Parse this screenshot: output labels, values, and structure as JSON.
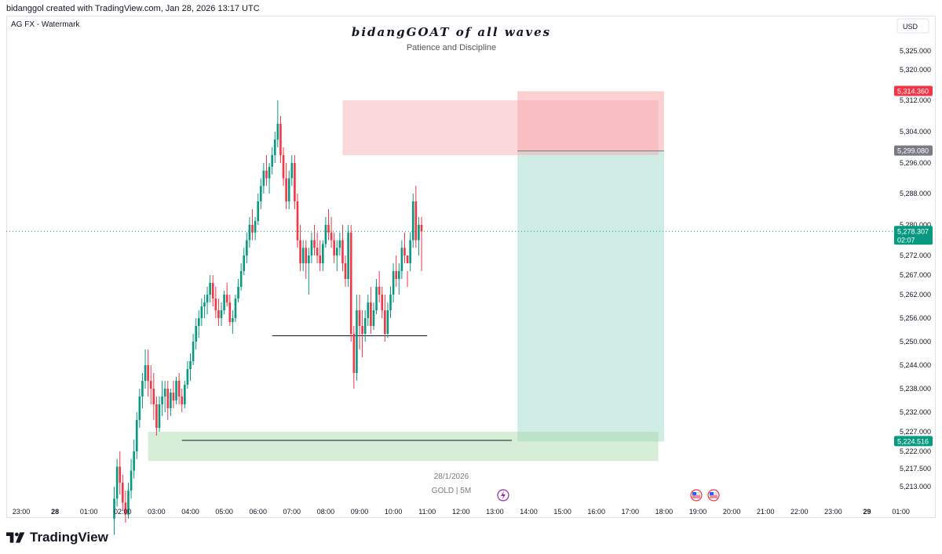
{
  "header": {
    "attribution": "bidanggol created with TradingView.com, Jan 28, 2026 13:17 UTC",
    "symbol_watermark": "AG FX - Watermark",
    "currency_button": "USD"
  },
  "footer": {
    "brand": "TradingView"
  },
  "chart_data": {
    "type": "candlestick",
    "title": "bidangGOAT of all waves",
    "subtitle": "Patience and Discipline",
    "symbol_label": "GOLD | 5M",
    "date_label": "28/1/2026",
    "currency": "USD",
    "x_ticks": [
      "23:00",
      "28",
      "01:00",
      "02:00",
      "03:00",
      "04:00",
      "05:00",
      "06:00",
      "07:00",
      "08:00",
      "09:00",
      "10:00",
      "11:00",
      "12:00",
      "13:00",
      "14:00",
      "15:00",
      "16:00",
      "17:00",
      "18:00",
      "19:00",
      "20:00",
      "21:00",
      "22:00",
      "23:00",
      "29",
      "01:00"
    ],
    "y_ticks": [
      "5,325.000",
      "5,320.000",
      "5,312.000",
      "5,304.000",
      "5,296.000",
      "5,288.000",
      "5,280.000",
      "5,272.000",
      "5,267.000",
      "5,262.000",
      "5,256.000",
      "5,250.000",
      "5,244.000",
      "5,238.000",
      "5,232.000",
      "5,227.000",
      "5,222.000",
      "5,217.500",
      "5,213.000"
    ],
    "price_labels": [
      {
        "value": "5,314.360",
        "color": "#f23645"
      },
      {
        "value": "5,299.080",
        "color": "#787b86"
      },
      {
        "value": "5,278.307",
        "sub": "02:07",
        "color": "#089981"
      },
      {
        "value": "5,224.516",
        "color": "#089981"
      }
    ],
    "colors": {
      "up": "#089981",
      "down": "#f23645",
      "supply_zone": "#f7a9ae",
      "demand_zone": "#a5d6a7",
      "target_zone": "#9fdcca",
      "stop_zone": "#f7a9ae"
    },
    "ohlc_series": [
      [
        5205.0,
        5213.0,
        5201.0,
        5210.0
      ],
      [
        5210.0,
        5220.0,
        5208.0,
        5218.0
      ],
      [
        5218.0,
        5222.0,
        5211.0,
        5214.0
      ],
      [
        5214.0,
        5216.0,
        5207.0,
        5209.0
      ],
      [
        5209.0,
        5212.0,
        5204.0,
        5206.0
      ],
      [
        5206.0,
        5214.0,
        5205.0,
        5212.0
      ],
      [
        5212.0,
        5220.0,
        5210.0,
        5217.0
      ],
      [
        5217.0,
        5225.0,
        5215.0,
        5222.0
      ],
      [
        5222.0,
        5232.0,
        5220.0,
        5230.0
      ],
      [
        5230.0,
        5238.0,
        5228.0,
        5236.0
      ],
      [
        5236.0,
        5242.0,
        5233.0,
        5240.0
      ],
      [
        5240.0,
        5248.0,
        5238.0,
        5244.0
      ],
      [
        5244.0,
        5248.0,
        5236.0,
        5240.0
      ],
      [
        5240.0,
        5244.0,
        5234.0,
        5238.0
      ],
      [
        5238.0,
        5242.0,
        5230.0,
        5234.0
      ],
      [
        5234.0,
        5236.0,
        5226.0,
        5228.0
      ],
      [
        5228.0,
        5236.0,
        5227.0,
        5234.0
      ],
      [
        5234.0,
        5240.0,
        5231.0,
        5236.0
      ],
      [
        5236.0,
        5240.0,
        5232.0,
        5238.0
      ],
      [
        5238.0,
        5240.0,
        5230.0,
        5233.0
      ],
      [
        5233.0,
        5238.0,
        5231.0,
        5237.0
      ],
      [
        5237.0,
        5240.0,
        5233.0,
        5235.0
      ],
      [
        5235.0,
        5241.0,
        5234.0,
        5240.0
      ],
      [
        5240.0,
        5242.0,
        5234.0,
        5236.0
      ],
      [
        5236.0,
        5238.0,
        5232.0,
        5234.0
      ],
      [
        5234.0,
        5240.0,
        5233.0,
        5239.0
      ],
      [
        5239.0,
        5245.0,
        5238.0,
        5243.0
      ],
      [
        5243.0,
        5247.0,
        5240.0,
        5245.0
      ],
      [
        5245.0,
        5252.0,
        5244.0,
        5250.0
      ],
      [
        5250.0,
        5256.0,
        5248.0,
        5254.0
      ],
      [
        5254.0,
        5258.0,
        5251.0,
        5256.0
      ],
      [
        5256.0,
        5261.0,
        5254.0,
        5259.0
      ],
      [
        5259.0,
        5262.0,
        5256.0,
        5260.0
      ],
      [
        5260.0,
        5264.0,
        5257.0,
        5262.0
      ],
      [
        5262.0,
        5267.0,
        5260.0,
        5265.0
      ],
      [
        5265.0,
        5267.0,
        5259.0,
        5261.0
      ],
      [
        5261.0,
        5264.0,
        5256.0,
        5258.0
      ],
      [
        5258.0,
        5261.0,
        5254.0,
        5256.0
      ],
      [
        5256.0,
        5260.0,
        5254.0,
        5258.0
      ],
      [
        5258.0,
        5263.0,
        5257.0,
        5262.0
      ],
      [
        5262.0,
        5265.0,
        5259.0,
        5260.0
      ],
      [
        5260.0,
        5262.0,
        5254.0,
        5255.0
      ],
      [
        5255.0,
        5258.0,
        5252.0,
        5256.0
      ],
      [
        5256.0,
        5262.0,
        5255.0,
        5261.0
      ],
      [
        5261.0,
        5266.0,
        5260.0,
        5264.0
      ],
      [
        5264.0,
        5270.0,
        5263.0,
        5268.0
      ],
      [
        5268.0,
        5274.0,
        5267.0,
        5272.0
      ],
      [
        5272.0,
        5278.0,
        5270.0,
        5276.0
      ],
      [
        5276.0,
        5282.0,
        5274.0,
        5280.0
      ],
      [
        5280.0,
        5284.0,
        5276.0,
        5278.0
      ],
      [
        5278.0,
        5282.0,
        5276.0,
        5281.0
      ],
      [
        5281.0,
        5288.0,
        5280.0,
        5286.0
      ],
      [
        5286.0,
        5292.0,
        5284.0,
        5290.0
      ],
      [
        5290.0,
        5296.0,
        5288.0,
        5294.0
      ],
      [
        5294.0,
        5298.0,
        5290.0,
        5292.0
      ],
      [
        5292.0,
        5296.0,
        5288.0,
        5295.0
      ],
      [
        5295.0,
        5300.0,
        5293.0,
        5298.0
      ],
      [
        5298.0,
        5304.0,
        5296.0,
        5302.0
      ],
      [
        5302.0,
        5312.0,
        5300.0,
        5306.0
      ],
      [
        5306.0,
        5308.0,
        5296.0,
        5298.0
      ],
      [
        5298.0,
        5300.0,
        5290.0,
        5292.0
      ],
      [
        5292.0,
        5296.0,
        5284.0,
        5286.0
      ],
      [
        5286.0,
        5294.0,
        5284.0,
        5292.0
      ],
      [
        5292.0,
        5298.0,
        5290.0,
        5296.0
      ],
      [
        5296.0,
        5298.0,
        5284.0,
        5286.0
      ],
      [
        5286.0,
        5288.0,
        5274.0,
        5276.0
      ],
      [
        5276.0,
        5280.0,
        5268.0,
        5270.0
      ],
      [
        5270.0,
        5276.0,
        5268.0,
        5274.0
      ],
      [
        5274.0,
        5276.0,
        5266.0,
        5270.0
      ],
      [
        5270.0,
        5274.0,
        5262.0,
        5272.0
      ],
      [
        5272.0,
        5278.0,
        5270.0,
        5276.0
      ],
      [
        5276.0,
        5280.0,
        5272.0,
        5274.0
      ],
      [
        5274.0,
        5278.0,
        5270.0,
        5272.0
      ],
      [
        5272.0,
        5276.0,
        5268.0,
        5270.0
      ],
      [
        5270.0,
        5276.0,
        5268.0,
        5275.0
      ],
      [
        5275.0,
        5282.0,
        5274.0,
        5280.0
      ],
      [
        5280.0,
        5284.0,
        5276.0,
        5278.0
      ],
      [
        5278.0,
        5282.0,
        5274.0,
        5276.0
      ],
      [
        5276.0,
        5278.0,
        5270.0,
        5272.0
      ],
      [
        5272.0,
        5276.0,
        5268.0,
        5274.0
      ],
      [
        5274.0,
        5278.0,
        5272.0,
        5276.0
      ],
      [
        5276.0,
        5280.0,
        5268.0,
        5270.0
      ],
      [
        5270.0,
        5272.0,
        5264.0,
        5266.0
      ],
      [
        5266.0,
        5280.0,
        5264.0,
        5278.0
      ],
      [
        5278.0,
        5280.0,
        5250.0,
        5252.0
      ],
      [
        5252.0,
        5254.0,
        5238.0,
        5242.0
      ],
      [
        5242.0,
        5262.0,
        5240.0,
        5258.0
      ],
      [
        5258.0,
        5262.0,
        5248.0,
        5254.0
      ],
      [
        5254.0,
        5258.0,
        5246.0,
        5252.0
      ],
      [
        5252.0,
        5258.0,
        5250.0,
        5256.0
      ],
      [
        5256.0,
        5262.0,
        5254.0,
        5260.0
      ],
      [
        5260.0,
        5264.0,
        5252.0,
        5254.0
      ],
      [
        5254.0,
        5260.0,
        5253.0,
        5258.0
      ],
      [
        5258.0,
        5266.0,
        5257.0,
        5264.0
      ],
      [
        5264.0,
        5268.0,
        5260.0,
        5262.0
      ],
      [
        5262.0,
        5264.0,
        5256.0,
        5258.0
      ],
      [
        5258.0,
        5262.0,
        5250.0,
        5252.0
      ],
      [
        5252.0,
        5260.0,
        5251.0,
        5258.0
      ],
      [
        5258.0,
        5264.0,
        5256.0,
        5262.0
      ],
      [
        5262.0,
        5270.0,
        5260.0,
        5268.0
      ],
      [
        5268.0,
        5272.0,
        5264.0,
        5266.0
      ],
      [
        5266.0,
        5270.0,
        5262.0,
        5268.0
      ],
      [
        5268.0,
        5276.0,
        5266.0,
        5274.0
      ],
      [
        5274.0,
        5278.0,
        5270.0,
        5272.0
      ],
      [
        5272.0,
        5268.0,
        5264.0,
        5270.0
      ],
      [
        5270.0,
        5278.0,
        5268.0,
        5276.0
      ],
      [
        5276.0,
        5288.0,
        5274.0,
        5286.0
      ],
      [
        5286.0,
        5290.0,
        5274.0,
        5276.0
      ],
      [
        5276.0,
        5282.0,
        5272.0,
        5280.0
      ],
      [
        5280.0,
        5282.0,
        5268.0,
        5278.3
      ]
    ],
    "zones": [
      {
        "name": "supply",
        "from_time": "08:30",
        "to_time": "17:50",
        "top": 5312.0,
        "bottom": 5298.0
      },
      {
        "name": "demand",
        "from_time": "02:45",
        "to_time": "17:50",
        "top": 5227.0,
        "bottom": 5219.5
      },
      {
        "name": "stop",
        "from_time": "13:40",
        "to_time": "18:00",
        "top": 5314.36,
        "bottom": 5299.08
      },
      {
        "name": "target",
        "from_time": "13:40",
        "to_time": "18:00",
        "top": 5299.08,
        "bottom": 5224.516
      }
    ],
    "levels": [
      {
        "name": "swing-low-1",
        "from_time": "06:25",
        "to_time": "11:00",
        "price": 5251.5
      },
      {
        "name": "swing-low-2",
        "from_time": "03:45",
        "to_time": "13:30",
        "price": 5224.8
      }
    ],
    "grid": false
  }
}
